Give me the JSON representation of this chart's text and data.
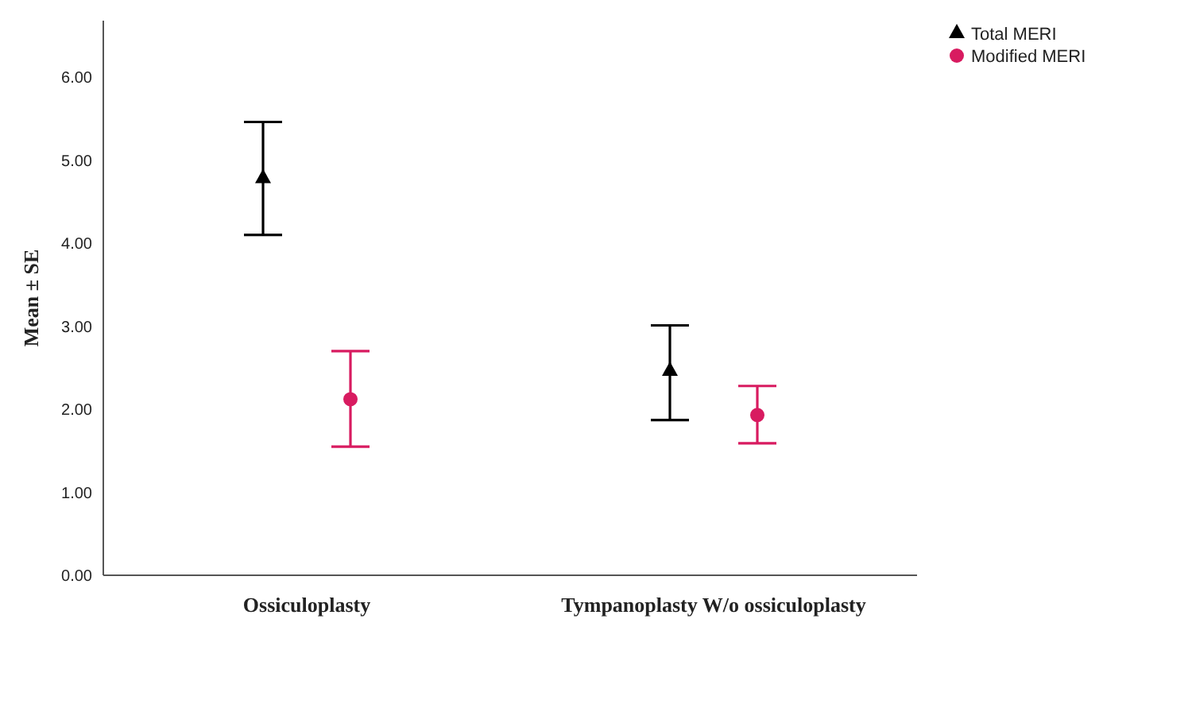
{
  "chart_data": {
    "type": "scatter",
    "ylabel": "Mean ± SE",
    "categories": [
      "Ossiculoplasty",
      "Tympanoplasty W/o ossiculoplasty"
    ],
    "ylim": [
      0,
      6.68
    ],
    "yticks": [
      {
        "value": 0,
        "label": "0.00"
      },
      {
        "value": 1,
        "label": "1.00"
      },
      {
        "value": 2,
        "label": "2.00"
      },
      {
        "value": 3,
        "label": "3.00"
      },
      {
        "value": 4,
        "label": "4.00"
      },
      {
        "value": 5,
        "label": "5.00"
      },
      {
        "value": 6,
        "label": "6.00"
      }
    ],
    "grid": false,
    "legend": "top right",
    "series": [
      {
        "name": "Total MERI",
        "color": "#000000",
        "marker": "triangle",
        "values": [
          4.78,
          2.46
        ],
        "errors": [
          [
            4.1,
            5.46
          ],
          [
            1.87,
            3.01
          ]
        ]
      },
      {
        "name": "Modified MERI",
        "color": "#d81b60",
        "marker": "circle",
        "values": [
          2.12,
          1.93
        ],
        "errors": [
          [
            1.55,
            2.7
          ],
          [
            1.59,
            2.28
          ]
        ]
      }
    ]
  }
}
